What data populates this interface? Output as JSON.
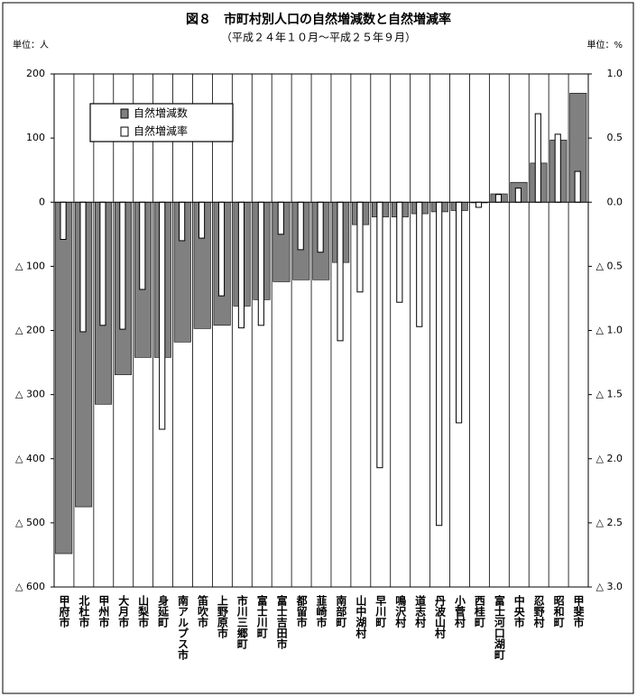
{
  "chart_data": {
    "type": "bar",
    "title": "図８　市町村別人口の自然増減数と自然増減率",
    "subtitle": "（平成２４年１０月～平成２５年９月）",
    "y_unit": "単位：人",
    "y2_unit": "単位：%",
    "categories": [
      "甲府市",
      "北杜市",
      "甲州市",
      "大月市",
      "山梨市",
      "身延町",
      "南アルプス市",
      "笛吹市",
      "上野原市",
      "市川三郷町",
      "富士川町",
      "富士吉田市",
      "都留市",
      "韮崎市",
      "南部町",
      "山中湖村",
      "早川町",
      "鳴沢村",
      "道志村",
      "丹波山村",
      "小菅村",
      "西桂町",
      "富士河口湖町",
      "中央市",
      "忍野村",
      "昭和町",
      "甲斐市"
    ],
    "series": [
      {
        "name": "自然増減数",
        "color": "#808080",
        "values": [
          -548,
          -475,
          -315,
          -269,
          -242,
          -242,
          -218,
          -197,
          -192,
          -162,
          -152,
          -124,
          -121,
          -121,
          -94,
          -35,
          -23,
          -23,
          -18,
          -15,
          -13,
          -1,
          13,
          31,
          61,
          97,
          170
        ]
      },
      {
        "name": "自然増減率",
        "color": "#ffffff",
        "axis": "y2",
        "values": [
          -0.29,
          -1.01,
          -0.96,
          -0.99,
          -0.68,
          -1.77,
          -0.3,
          -0.28,
          -0.73,
          -0.98,
          -0.96,
          -0.25,
          -0.37,
          -0.39,
          -1.08,
          -0.7,
          -2.07,
          -0.78,
          -0.97,
          -2.52,
          -1.72,
          -0.04,
          0.06,
          0.11,
          0.69,
          0.53,
          0.24
        ]
      }
    ],
    "ylim": [
      -600,
      200
    ],
    "yticks": [
      {
        "value": 200,
        "label": "200"
      },
      {
        "value": 100,
        "label": "100"
      },
      {
        "value": 0,
        "label": "0"
      },
      {
        "value": -100,
        "label": "△ 100"
      },
      {
        "value": -200,
        "label": "△ 200"
      },
      {
        "value": -300,
        "label": "△ 300"
      },
      {
        "value": -400,
        "label": "△ 400"
      },
      {
        "value": -500,
        "label": "△ 500"
      },
      {
        "value": -600,
        "label": "△ 600"
      }
    ],
    "y2lim": [
      -3,
      1
    ],
    "y2ticks": [
      {
        "value": 1,
        "label": "1.0"
      },
      {
        "value": 0.5,
        "label": "0.5"
      },
      {
        "value": 0,
        "label": "0.0"
      },
      {
        "value": -0.5,
        "label": "△ 0.5"
      },
      {
        "value": -1,
        "label": "△ 1.0"
      },
      {
        "value": -1.5,
        "label": "△ 1.5"
      },
      {
        "value": -2,
        "label": "△ 2.0"
      },
      {
        "value": -2.5,
        "label": "△ 2.5"
      },
      {
        "value": -3,
        "label": "△ 3.0"
      }
    ],
    "legend": "upper left"
  }
}
